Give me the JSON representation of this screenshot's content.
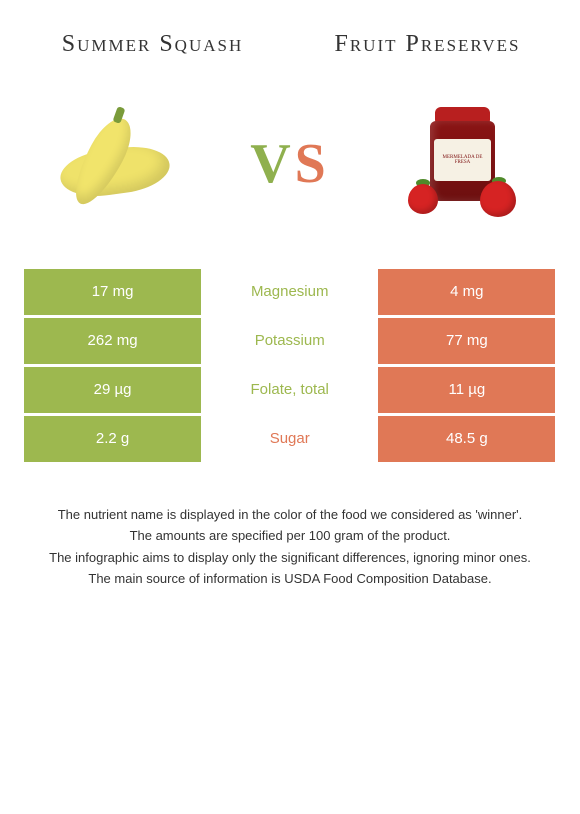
{
  "titles": {
    "left": "Summer Squash",
    "right": "Fruit Preserves"
  },
  "vs": {
    "v": "V",
    "s": "S"
  },
  "colors": {
    "left_food": "#9db84f",
    "right_food": "#e07856",
    "left_cell_bg": "#9db84f",
    "right_cell_bg": "#e07856",
    "mid_bg": "#ffffff",
    "page_bg": "#ffffff"
  },
  "rows": [
    {
      "left": "17 mg",
      "label": "Magnesium",
      "right": "4 mg",
      "winner": "left"
    },
    {
      "left": "262 mg",
      "label": "Potassium",
      "right": "77 mg",
      "winner": "left"
    },
    {
      "left": "29 µg",
      "label": "Folate, total",
      "right": "11 µg",
      "winner": "left"
    },
    {
      "left": "2.2 g",
      "label": "Sugar",
      "right": "48.5 g",
      "winner": "right"
    }
  ],
  "footnotes": [
    "The nutrient name is displayed in the color of the food we considered as 'winner'.",
    "The amounts are specified per 100 gram of the product.",
    "The infographic aims to display only the significant differences, ignoring minor ones.",
    "The main source of information is USDA Food Composition Database."
  ],
  "jar_label": "MERMELADA DE FRESA"
}
